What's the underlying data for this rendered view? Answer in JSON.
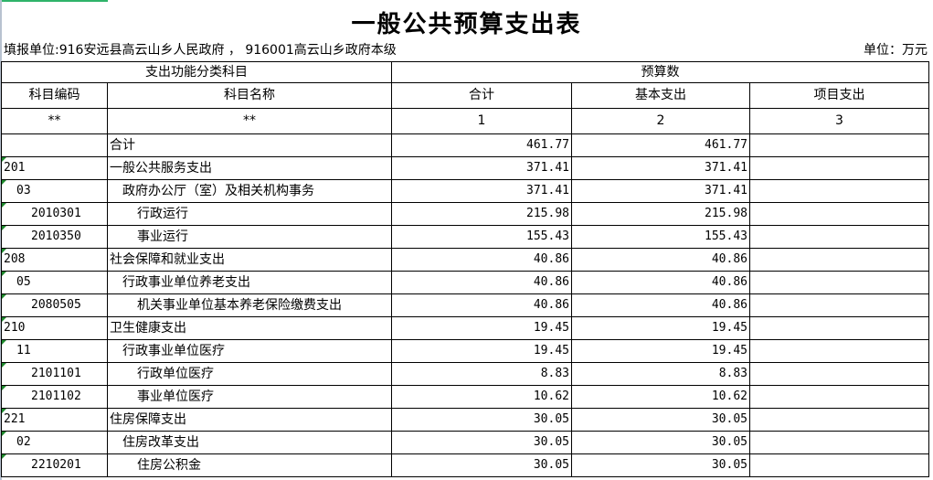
{
  "title": "一般公共预算支出表",
  "unit_left": "填报单位:916安远县高云山乡人民政府 ， 916001高云山乡政府本级",
  "unit_right": "单位：万元",
  "header": {
    "group_left": "支出功能分类科目",
    "group_right": "预算数",
    "cols": [
      "科目编码",
      "科目名称",
      "合计",
      "基本支出",
      "项目支出"
    ],
    "index_row": [
      "**",
      "**",
      "1",
      "2",
      "3"
    ]
  },
  "rows": [
    {
      "code": "",
      "name": "合计",
      "total": "461.77",
      "basic": "461.77",
      "project": "",
      "level": 1
    },
    {
      "code": "201",
      "name": "一般公共服务支出",
      "total": "371.41",
      "basic": "371.41",
      "project": "",
      "level": 1
    },
    {
      "code": "03",
      "name": "政府办公厅（室）及相关机构事务",
      "total": "371.41",
      "basic": "371.41",
      "project": "",
      "level": 2
    },
    {
      "code": "2010301",
      "name": "行政运行",
      "total": "215.98",
      "basic": "215.98",
      "project": "",
      "level": 3
    },
    {
      "code": "2010350",
      "name": "事业运行",
      "total": "155.43",
      "basic": "155.43",
      "project": "",
      "level": 3
    },
    {
      "code": "208",
      "name": "社会保障和就业支出",
      "total": "40.86",
      "basic": "40.86",
      "project": "",
      "level": 1
    },
    {
      "code": "05",
      "name": "行政事业单位养老支出",
      "total": "40.86",
      "basic": "40.86",
      "project": "",
      "level": 2
    },
    {
      "code": "2080505",
      "name": "机关事业单位基本养老保险缴费支出",
      "total": "40.86",
      "basic": "40.86",
      "project": "",
      "level": 3
    },
    {
      "code": "210",
      "name": "卫生健康支出",
      "total": "19.45",
      "basic": "19.45",
      "project": "",
      "level": 1
    },
    {
      "code": "11",
      "name": "行政事业单位医疗",
      "total": "19.45",
      "basic": "19.45",
      "project": "",
      "level": 2
    },
    {
      "code": "2101101",
      "name": "行政单位医疗",
      "total": "8.83",
      "basic": "8.83",
      "project": "",
      "level": 3
    },
    {
      "code": "2101102",
      "name": "事业单位医疗",
      "total": "10.62",
      "basic": "10.62",
      "project": "",
      "level": 3
    },
    {
      "code": "221",
      "name": "住房保障支出",
      "total": "30.05",
      "basic": "30.05",
      "project": "",
      "level": 1
    },
    {
      "code": "02",
      "name": "住房改革支出",
      "total": "30.05",
      "basic": "30.05",
      "project": "",
      "level": 2
    },
    {
      "code": "2210201",
      "name": "住房公积金",
      "total": "30.05",
      "basic": "30.05",
      "project": "",
      "level": 3
    }
  ]
}
